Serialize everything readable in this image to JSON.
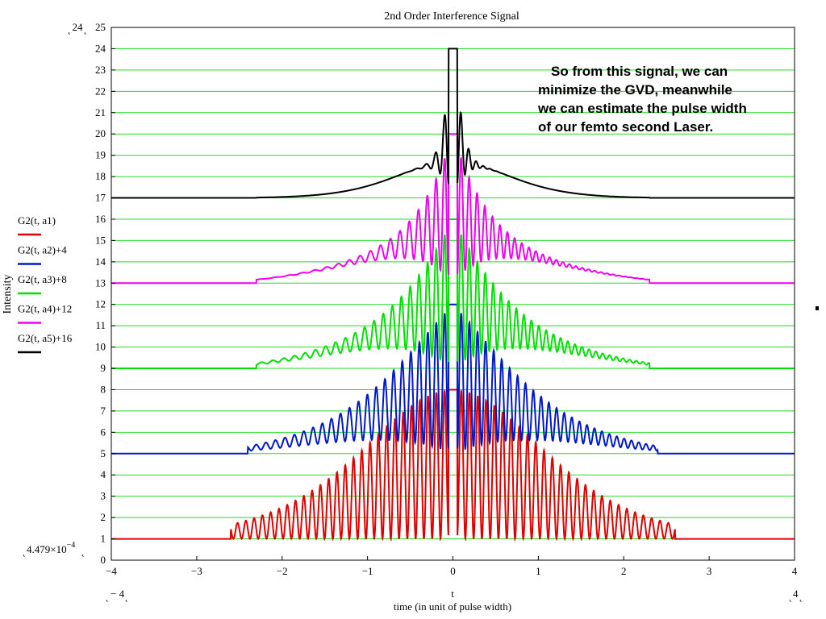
{
  "chart_data": {
    "type": "line",
    "title": "2nd Order Interference Signal",
    "xlabel": "t",
    "xlabel_sub": "time (in unit of pulse width)",
    "ylabel": "Intensity",
    "xlim": [
      -4,
      4
    ],
    "ylim": [
      0,
      25
    ],
    "x_ticks": [
      "−4",
      "−3",
      "−2",
      "−1",
      "0",
      "1",
      "2",
      "3",
      "4"
    ],
    "y_ticks": [
      "0",
      "1",
      "2",
      "3",
      "4",
      "5",
      "6",
      "7",
      "8",
      "9",
      "10",
      "11",
      "12",
      "13",
      "14",
      "15",
      "16",
      "17",
      "18",
      "19",
      "20",
      "21",
      "22",
      "23",
      "24",
      "25"
    ],
    "grid": "horizontal",
    "range_markers": {
      "y_max": "24",
      "y_min": "4.479×10",
      "y_min_exp": "−4",
      "x_min": "− 4",
      "x_max": "4"
    },
    "series": [
      {
        "name": "G2(t, a1)",
        "color": "#e00000",
        "offset": 0,
        "baseline": 1,
        "peak": 8,
        "fringe_spacing": 0.097,
        "envelope_halfwidth": 1.7,
        "chirp": 0,
        "x_extent": 2.6
      },
      {
        "name": "G2(t, a2)+4",
        "color": "#0018c8",
        "offset": 4,
        "baseline": 1,
        "peak": 8,
        "fringe_spacing": 0.097,
        "envelope_halfwidth": 1.5,
        "chirp": 0.8,
        "x_extent": 2.4
      },
      {
        "name": "G2(t, a3)+8",
        "color": "#00e000",
        "offset": 8,
        "baseline": 1,
        "peak": 8,
        "fringe_spacing": 0.097,
        "envelope_halfwidth": 1.2,
        "chirp": 1.5,
        "x_extent": 2.3
      },
      {
        "name": "G2(t, a4)+12",
        "color": "#f000f0",
        "offset": 12,
        "baseline": 1,
        "peak": 8,
        "fringe_spacing": 0.097,
        "envelope_halfwidth": 0.85,
        "chirp": 2.5,
        "x_extent": 2.3
      },
      {
        "name": "G2(t, a5)+16",
        "color": "#000000",
        "offset": 16,
        "baseline": 1,
        "peak": 8,
        "fringe_spacing": 0.097,
        "envelope_halfwidth": 0.2,
        "chirp": 6,
        "x_extent": 2.3
      }
    ]
  },
  "annotation": {
    "lines": [
      "So from this signal, we can",
      "minimize the GVD, meanwhile",
      "we can estimate the pulse width",
      "of our femto second Laser."
    ]
  }
}
